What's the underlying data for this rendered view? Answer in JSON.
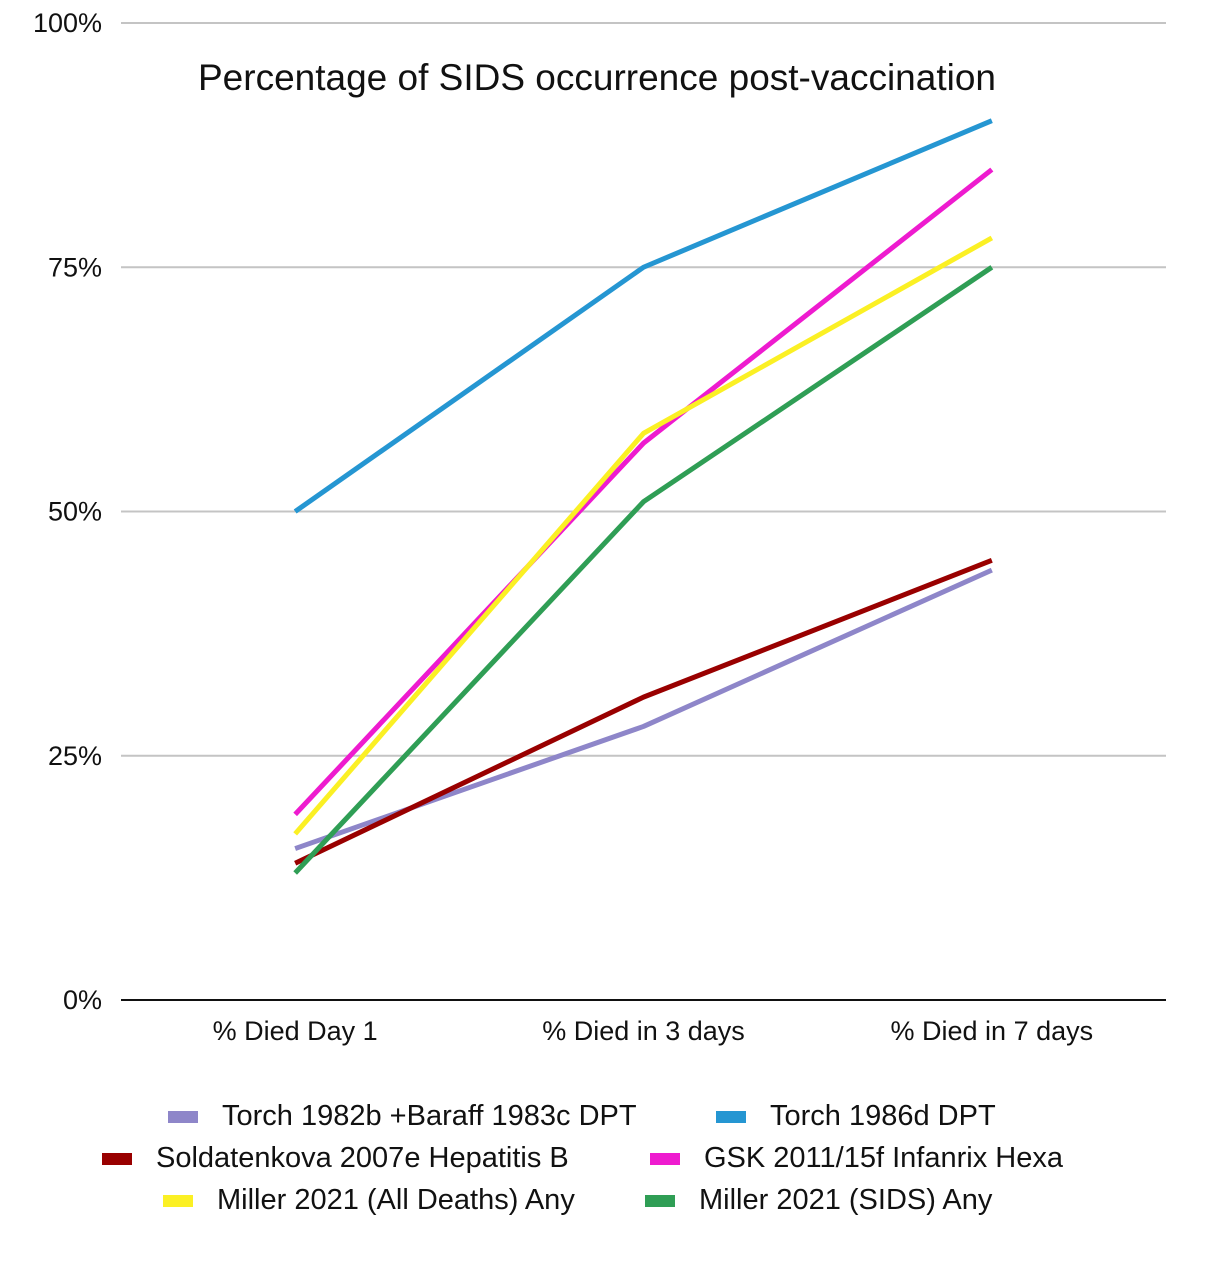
{
  "chart_data": {
    "type": "line",
    "title": "Percentage of SIDS occurrence post-vaccination",
    "xlabel": "",
    "ylabel": "",
    "categories": [
      "% Died Day 1",
      "% Died in 3 days",
      "% Died in 7 days"
    ],
    "ylim": [
      0,
      100
    ],
    "yticks": [
      0,
      25,
      50,
      75,
      100
    ],
    "ytick_labels": [
      "0%",
      "25%",
      "50%",
      "75%",
      "100%"
    ],
    "grid": true,
    "legend_position": "bottom",
    "series": [
      {
        "name": "Torch 1982b +Baraff 1983c DPT",
        "color": "#8e86c9",
        "values": [
          15.5,
          28,
          44
        ]
      },
      {
        "name": "Torch 1986d DPT",
        "color": "#2596d2",
        "values": [
          50,
          75,
          90
        ]
      },
      {
        "name": "Soldatenkova 2007e Hepatitis B",
        "color": "#990000",
        "values": [
          14,
          31,
          45
        ]
      },
      {
        "name": "GSK 2011/15f Infanrix Hexa",
        "color": "#ee1bcf",
        "values": [
          19,
          57,
          85
        ]
      },
      {
        "name": "Miller 2021 (All Deaths) Any",
        "color": "#fbf024",
        "values": [
          17,
          58,
          78
        ]
      },
      {
        "name": "Miller 2021 (SIDS) Any",
        "color": "#2f9e55",
        "values": [
          13,
          51,
          75
        ]
      }
    ]
  }
}
